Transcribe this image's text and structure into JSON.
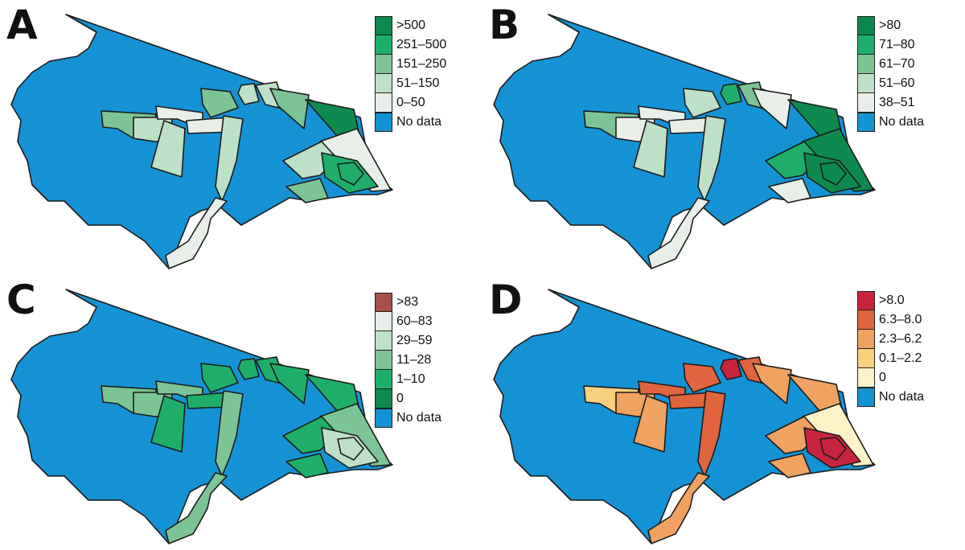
{
  "panels": [
    {
      "letter": "A",
      "legend": [
        {
          "label": ">500",
          "color": "#0e8a4e"
        },
        {
          "label": "251–500",
          "color": "#1fae6a"
        },
        {
          "label": "151–250",
          "color": "#7cc496"
        },
        {
          "label": "51–150",
          "color": "#bfe0c8"
        },
        {
          "label": "0–50",
          "color": "#e8efe9"
        },
        {
          "label": "No data",
          "color": "#1592d4"
        }
      ],
      "region_classes": [
        2,
        3,
        3,
        4,
        4,
        2,
        3,
        2,
        0,
        4,
        3,
        1,
        2,
        3,
        4,
        3,
        1
      ]
    },
    {
      "letter": "B",
      "legend": [
        {
          "label": ">80",
          "color": "#0e8a4e"
        },
        {
          "label": "71–80",
          "color": "#1fae6a"
        },
        {
          "label": "61–70",
          "color": "#7cc496"
        },
        {
          "label": "51–60",
          "color": "#bfe0c8"
        },
        {
          "label": "38–51",
          "color": "#e8efe9"
        },
        {
          "label": "No data",
          "color": "#1592d4"
        }
      ],
      "region_classes": [
        2,
        4,
        3,
        4,
        4,
        3,
        2,
        4,
        0,
        0,
        1,
        0,
        4,
        3,
        4,
        1,
        0
      ]
    },
    {
      "letter": "C",
      "legend": [
        {
          "label": ">83",
          "color": "#a8504a"
        },
        {
          "label": "60–83",
          "color": "#e8efe9"
        },
        {
          "label": "29–59",
          "color": "#bfe0c8"
        },
        {
          "label": "11–28",
          "color": "#7cc496"
        },
        {
          "label": "1–10",
          "color": "#1fae6a"
        },
        {
          "label": "0",
          "color": "#0e8a4e"
        },
        {
          "label": "No data",
          "color": "#1592d4"
        }
      ],
      "region_classes": [
        3,
        3,
        4,
        3,
        4,
        4,
        4,
        4,
        4,
        3,
        4,
        2,
        4,
        3,
        3,
        4,
        2
      ]
    },
    {
      "letter": "D",
      "legend": [
        {
          "label": ">8.0",
          "color": "#c8243e"
        },
        {
          "label": "6.3–8.0",
          "color": "#e0643e"
        },
        {
          "label": "2.3–6.2",
          "color": "#f0a261"
        },
        {
          "label": "0.1–2.2",
          "color": "#f8d07e"
        },
        {
          "label": "0",
          "color": "#fbf2c8"
        },
        {
          "label": "No data",
          "color": "#1592d4"
        }
      ],
      "region_classes": [
        3,
        2,
        2,
        1,
        1,
        1,
        1,
        2,
        2,
        4,
        2,
        0,
        2,
        1,
        2,
        0,
        0
      ]
    }
  ]
}
